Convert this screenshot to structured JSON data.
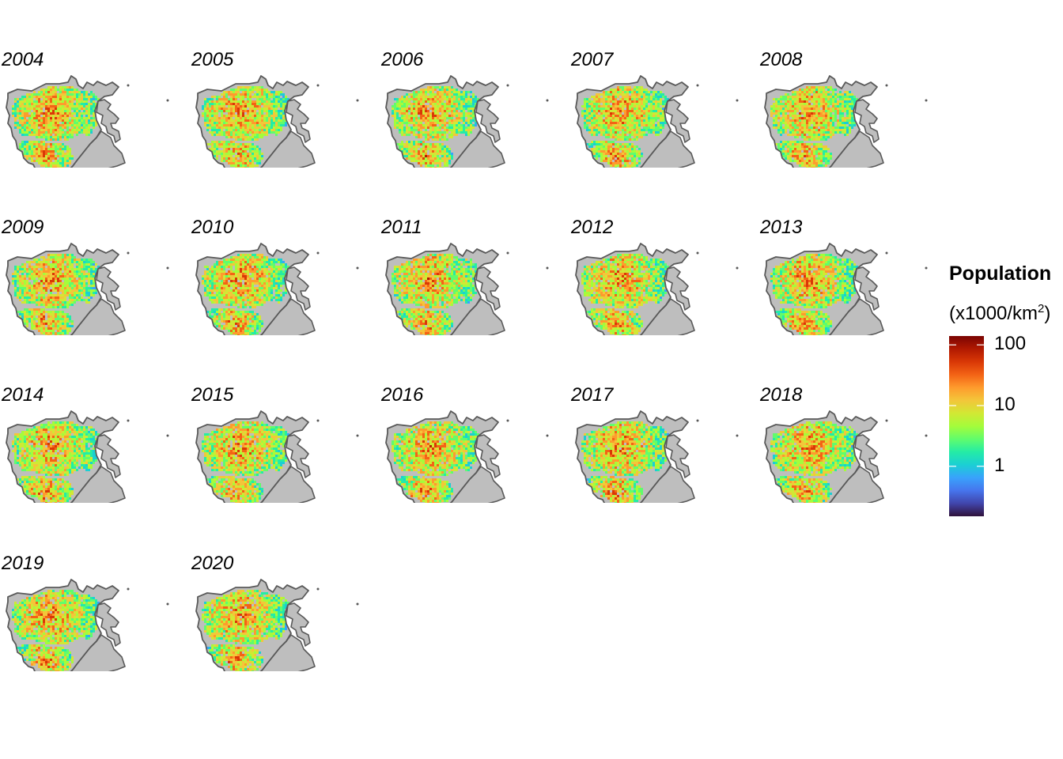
{
  "legend": {
    "title": "Population",
    "subtitle_prefix": "(x1000/km",
    "subtitle_sup": "2",
    "subtitle_suffix": ")",
    "scale": "log10",
    "ticks": [
      {
        "label": "100",
        "value": 100
      },
      {
        "label": "10",
        "value": 10
      },
      {
        "label": "1",
        "value": 1
      }
    ],
    "range": [
      0.15,
      140
    ],
    "colormap": [
      "#30123b",
      "#4145ab",
      "#4675ed",
      "#39a2fc",
      "#1bcfd4",
      "#24eca6",
      "#61fc6c",
      "#a4fc3b",
      "#d1e834",
      "#f3c63a",
      "#fe9b2d",
      "#f36315",
      "#d93806",
      "#b11901",
      "#7a0402"
    ]
  },
  "map_colors": {
    "land": "#bebebe",
    "outline": "#595959"
  },
  "panels": [
    {
      "year": "2004"
    },
    {
      "year": "2005"
    },
    {
      "year": "2006"
    },
    {
      "year": "2007"
    },
    {
      "year": "2008"
    },
    {
      "year": "2009"
    },
    {
      "year": "2010"
    },
    {
      "year": "2011"
    },
    {
      "year": "2012"
    },
    {
      "year": "2013"
    },
    {
      "year": "2014"
    },
    {
      "year": "2015"
    },
    {
      "year": "2016"
    },
    {
      "year": "2017"
    },
    {
      "year": "2018"
    },
    {
      "year": "2019"
    },
    {
      "year": "2020"
    }
  ]
}
